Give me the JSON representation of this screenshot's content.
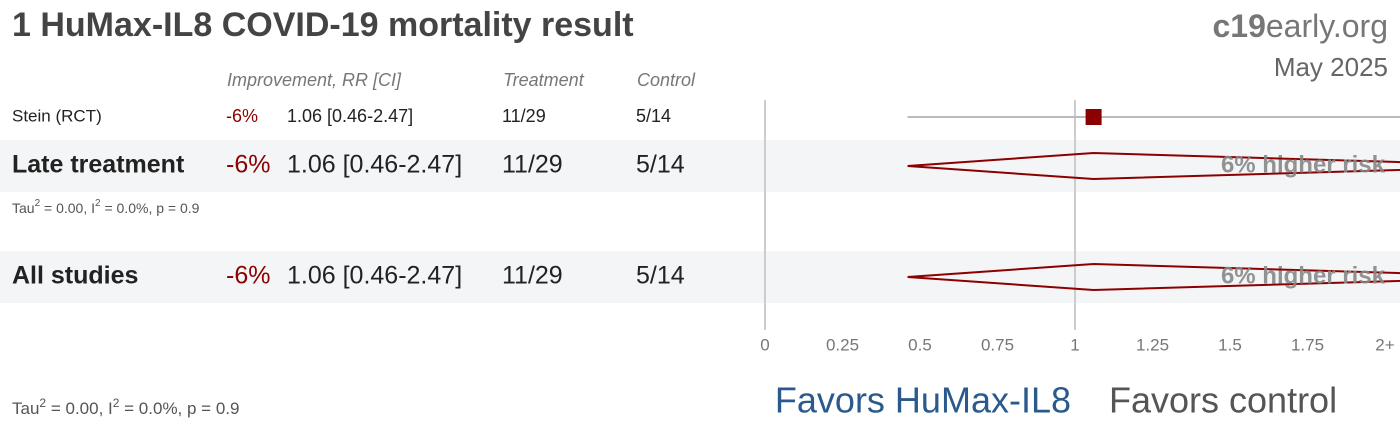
{
  "chart_data": {
    "type": "forest",
    "title": "1 HuMax-IL8 COVID-19 mortality result",
    "brand": {
      "bold": "c19",
      "rest": "early.org"
    },
    "date": "May 2025",
    "columns": [
      "Improvement, RR [CI]",
      "Treatment",
      "Control"
    ],
    "color": "#8b0000",
    "studies": [
      {
        "name": "Stein (RCT)",
        "improvement": "-6%",
        "rr": 1.06,
        "ci": [
          0.46,
          2.47
        ],
        "rr_label": "1.06 [0.46-2.47]",
        "treatment": "11/29",
        "control": "5/14"
      }
    ],
    "groups": [
      {
        "name": "Late treatment",
        "improvement": "-6%",
        "rr": 1.06,
        "ci": [
          0.46,
          2.47
        ],
        "rr_label": "1.06 [0.46-2.47]",
        "treatment": "11/29",
        "control": "5/14",
        "annotation": "6% higher risk",
        "heterogeneity": [
          "Tau",
          "2",
          " = 0.00, I",
          "2",
          " = 0.0%, p = 0.9"
        ]
      },
      {
        "name": "All studies",
        "improvement": "-6%",
        "rr": 1.06,
        "ci": [
          0.46,
          2.47
        ],
        "rr_label": "1.06 [0.46-2.47]",
        "treatment": "11/29",
        "control": "5/14",
        "annotation": "6% higher risk",
        "heterogeneity": [
          "Tau",
          "2",
          " = 0.00, I",
          "2",
          " = 0.0%, p = 0.9"
        ]
      }
    ],
    "xlim": [
      0,
      2
    ],
    "xticks": [
      0,
      0.25,
      0.5,
      0.75,
      1,
      1.25,
      1.5,
      1.75,
      {
        "value": 2,
        "label": "2+"
      }
    ],
    "favors": [
      "Favors HuMax-IL8",
      "Favors control"
    ]
  }
}
